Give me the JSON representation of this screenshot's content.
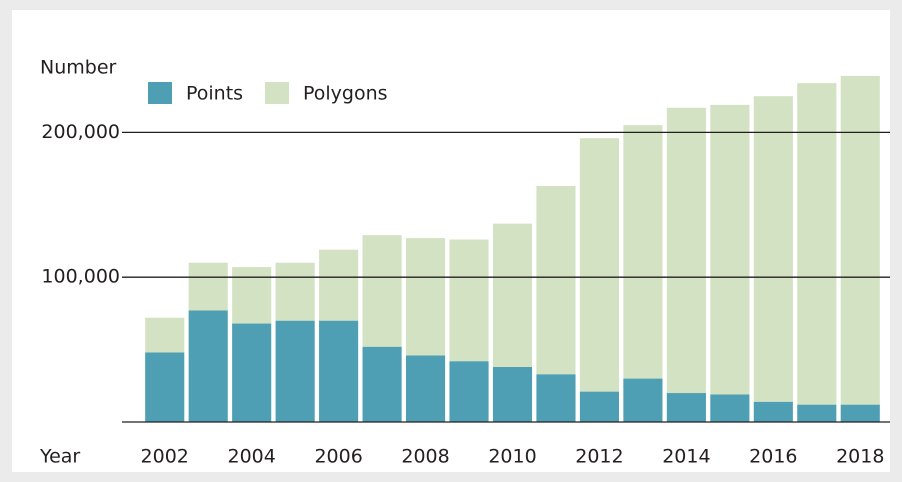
{
  "chart_data": {
    "type": "stacked_bar",
    "y_label": "Number",
    "x_label": "Year",
    "categories": [
      "2002",
      null,
      "2004",
      null,
      "2006",
      null,
      "2008",
      null,
      "2010",
      null,
      "2012",
      null,
      "2014",
      null,
      "2016",
      null,
      "2018"
    ],
    "series": [
      {
        "name": "Points",
        "color": "#4e9fb3",
        "values": [
          48000,
          77000,
          68000,
          70000,
          70000,
          52000,
          46000,
          42000,
          38000,
          33000,
          21000,
          30000,
          20000,
          19000,
          14000,
          12000,
          12000
        ]
      },
      {
        "name": "Polygons",
        "color": "#d3e2c2",
        "values": [
          24000,
          33000,
          39000,
          40000,
          49000,
          77000,
          81000,
          84000,
          99000,
          130000,
          175000,
          175000,
          197000,
          200000,
          211000,
          222000,
          227000
        ]
      }
    ],
    "ylim": [
      0,
      250000
    ],
    "yticks": [
      {
        "value": 100000,
        "label": "100,000"
      },
      {
        "value": 200000,
        "label": "200,000"
      }
    ],
    "grid": true
  }
}
